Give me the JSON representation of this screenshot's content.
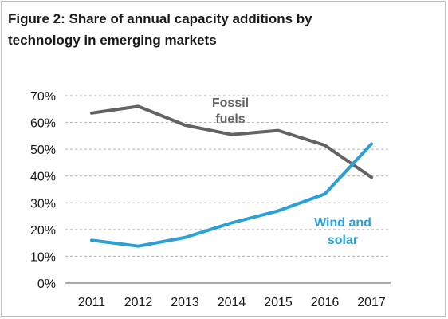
{
  "chart_data": {
    "type": "line",
    "title": "Figure 2:  Share of annual  capacity additions by\ntechnology in emerging markets",
    "xlabel": "",
    "ylabel": "",
    "x": [
      "2011",
      "2012",
      "2013",
      "2014",
      "2015",
      "2016",
      "2017"
    ],
    "ylim": [
      0,
      70
    ],
    "yticks": [
      0,
      10,
      20,
      30,
      40,
      50,
      60,
      70
    ],
    "ytick_labels": [
      "0%",
      "10%",
      "20%",
      "30%",
      "40%",
      "50%",
      "60%",
      "70%"
    ],
    "grid": true,
    "series": [
      {
        "name": "Fossil fuels",
        "label_lines": [
          "Fossil",
          "fuels"
        ],
        "color": "#636363",
        "values": [
          63.5,
          66,
          59,
          55.5,
          57,
          51.5,
          39.5
        ]
      },
      {
        "name": "Wind and solar",
        "label_lines": [
          "Wind and",
          "solar"
        ],
        "color": "#2aa0d6",
        "values": [
          16,
          13.8,
          17,
          22.5,
          27,
          33.3,
          52
        ]
      }
    ]
  }
}
